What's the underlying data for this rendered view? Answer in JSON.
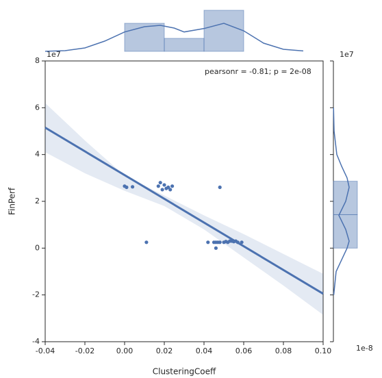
{
  "chart_data": {
    "type": "scatter",
    "x_label": "ClusteringCoeff",
    "y_label": "FinPerf",
    "annotation": "pearsonr = -0.81; p = 2e-08",
    "y_offset_label": "1e7",
    "marginal_y_offset_label": "1e7",
    "marginal_density_offset_label": "1e-8",
    "color": "#4c72b0",
    "xlim": [
      -0.04,
      0.1
    ],
    "ylim": [
      -4,
      8
    ],
    "xticks": [
      -0.04,
      -0.02,
      {
        "value": 0,
        "label": "0.00"
      },
      0.02,
      0.04,
      0.06,
      0.08,
      {
        "value": 0.1,
        "label": "0.10"
      }
    ],
    "yticks": [
      -4,
      -2,
      0,
      2,
      4,
      6,
      8
    ],
    "x": [
      0.0,
      0.001,
      0.004,
      0.011,
      0.017,
      0.018,
      0.019,
      0.02,
      0.021,
      0.022,
      0.023,
      0.024,
      0.048,
      0.042,
      0.045,
      0.046,
      0.046,
      0.047,
      0.048,
      0.05,
      0.051,
      0.052,
      0.053,
      0.054,
      0.055,
      0.056,
      0.057,
      0.059
    ],
    "values": [
      2.65,
      2.6,
      2.62,
      0.25,
      2.65,
      2.8,
      2.5,
      2.7,
      2.55,
      2.6,
      2.5,
      2.65,
      2.6,
      0.25,
      0.25,
      0.0,
      0.25,
      0.25,
      0.25,
      0.25,
      0.28,
      0.25,
      0.3,
      0.3,
      0.28,
      0.3,
      0.25,
      0.25
    ],
    "regression": {
      "x": [
        -0.04,
        0.1
      ],
      "y": [
        5.15,
        -1.95
      ]
    },
    "ci": {
      "x": [
        -0.04,
        -0.02,
        0.0,
        0.02,
        0.04,
        0.06,
        0.08,
        0.1
      ],
      "upper": [
        6.2,
        4.6,
        3.1,
        2.25,
        1.4,
        0.6,
        -0.25,
        -1.1
      ],
      "lower": [
        4.1,
        3.2,
        2.45,
        1.8,
        0.8,
        -0.4,
        -1.6,
        -2.85
      ]
    },
    "marginal_x": {
      "bins": [
        0.0,
        0.02,
        0.04,
        0.06
      ],
      "values": [
        12.3,
        5.7,
        18
      ],
      "ylim": [
        0,
        18.6
      ],
      "kde_x": [
        -0.04,
        -0.03,
        -0.02,
        -0.01,
        0.0,
        0.01,
        0.018,
        0.025,
        0.03,
        0.04,
        0.05,
        0.06,
        0.07,
        0.08,
        0.09
      ],
      "kde_y": [
        0.05,
        0.3,
        1.5,
        4.5,
        8.5,
        10.8,
        11.4,
        10.2,
        8.5,
        10.0,
        12.3,
        9.0,
        3.6,
        0.9,
        0.2
      ]
    },
    "marginal_y": {
      "bins": [
        0.0,
        1.43,
        2.86
      ],
      "values": [
        3.5,
        3.5
      ],
      "xlim": [
        0,
        6.2
      ],
      "kde_y": [
        -2.0,
        -1.0,
        -0.5,
        0.0,
        0.3,
        0.8,
        1.4,
        2.0,
        2.6,
        3.0,
        3.5,
        4.0,
        5.0,
        6.0
      ],
      "kde_x": [
        0.05,
        0.4,
        1.2,
        2.0,
        2.3,
        1.8,
        0.8,
        1.8,
        2.3,
        2.0,
        1.2,
        0.5,
        0.1,
        0.02
      ]
    }
  }
}
